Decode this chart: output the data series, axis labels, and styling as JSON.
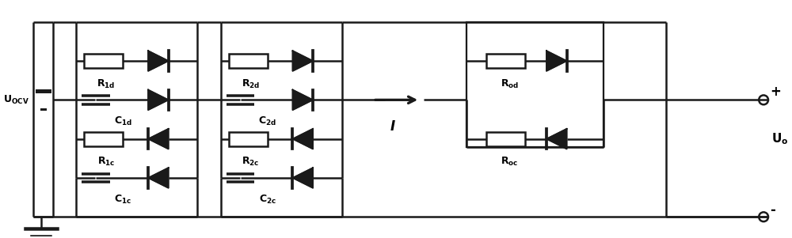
{
  "fig_width": 10.0,
  "fig_height": 3.01,
  "dpi": 100,
  "bg_color": "#ffffff",
  "line_color": "#1a1a1a",
  "line_width": 1.8,
  "label_UOCV": "U$_\\mathbf{OCV}$",
  "label_Uo": "U$_\\mathbf{o}$",
  "label_I": "$I$",
  "label_R1d": "R$_{\\mathbf{1d}}$",
  "label_R1c": "R$_{\\mathbf{1c}}$",
  "label_C1d": "C$_{\\mathbf{1d}}$",
  "label_C1c": "C$_{\\mathbf{1c}}$",
  "label_R2d": "R$_{\\mathbf{2d}}$",
  "label_R2c": "R$_{\\mathbf{2c}}$",
  "label_C2d": "C$_{\\mathbf{2d}}$",
  "label_C2c": "C$_{\\mathbf{2c}}$",
  "label_Rod": "R$_{\\mathbf{od}}$",
  "label_Roc": "R$_{\\mathbf{oc}}$"
}
